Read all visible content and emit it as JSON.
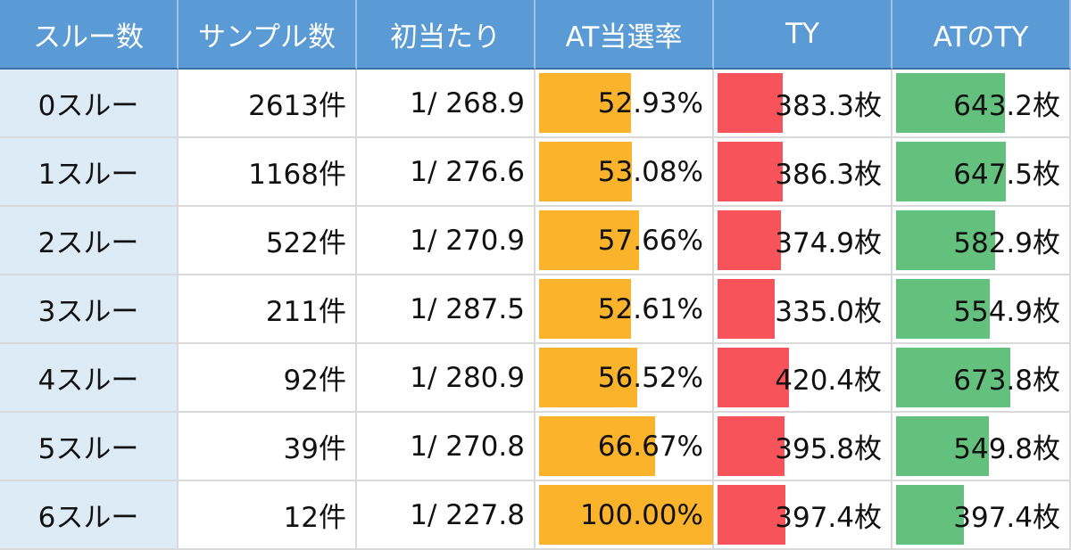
{
  "table": {
    "header": [
      "スルー数",
      "サンプル数",
      "初当たり",
      "AT当選率",
      "TY",
      "ATのTY"
    ],
    "rows": [
      [
        "0スルー",
        "2613件",
        "1/ 268.9",
        {
          "value": 52.93,
          "label": "52.93%"
        },
        {
          "value": 383.3,
          "label": "383.3枚"
        },
        {
          "value": 643.2,
          "label": "643.2枚"
        }
      ],
      [
        "1スルー",
        "1168件",
        "1/ 276.6",
        {
          "value": 53.08,
          "label": "53.08%"
        },
        {
          "value": 386.3,
          "label": "386.3枚"
        },
        {
          "value": 647.5,
          "label": "647.5枚"
        }
      ],
      [
        "2スルー",
        "522件",
        "1/ 270.9",
        {
          "value": 57.66,
          "label": "57.66%"
        },
        {
          "value": 374.9,
          "label": "374.9枚"
        },
        {
          "value": 582.9,
          "label": "582.9枚"
        }
      ],
      [
        "3スルー",
        "211件",
        "1/ 287.5",
        {
          "value": 52.61,
          "label": "52.61%"
        },
        {
          "value": 335.0,
          "label": "335.0枚"
        },
        {
          "value": 554.9,
          "label": "554.9枚"
        }
      ],
      [
        "4スルー",
        "92件",
        "1/ 280.9",
        {
          "value": 56.52,
          "label": "56.52%"
        },
        {
          "value": 420.4,
          "label": "420.4枚"
        },
        {
          "value": 673.8,
          "label": "673.8枚"
        }
      ],
      [
        "5スルー",
        "39件",
        "1/ 270.8",
        {
          "value": 66.67,
          "label": "66.67%"
        },
        {
          "value": 395.8,
          "label": "395.8枚"
        },
        {
          "value": 549.8,
          "label": "549.8枚"
        }
      ],
      [
        "6スルー",
        "12件",
        "1/ 227.8",
        {
          "value": 100.0,
          "label": "100.00%"
        },
        {
          "value": 397.4,
          "label": "397.4枚"
        },
        {
          "value": 397.4,
          "label": "397.4枚"
        }
      ]
    ]
  }
}
